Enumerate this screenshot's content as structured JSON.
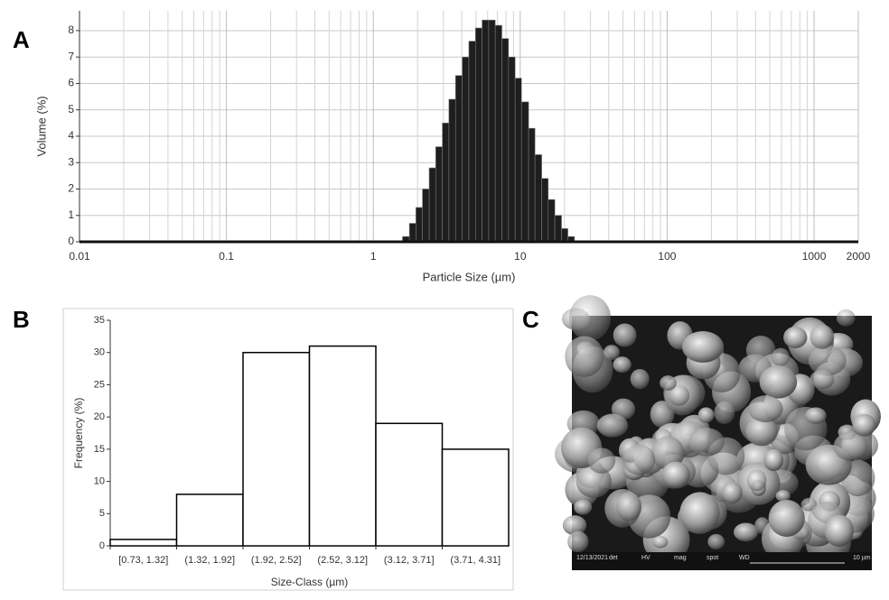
{
  "chart_data": [
    {
      "type": "histogram",
      "panel": "A",
      "xlabel": "Particle Size (µm)",
      "ylabel": "Volume (%)",
      "log_x": true,
      "grid": true,
      "color": "#1e1e1e",
      "bins": [
        1.58,
        1.76,
        1.95,
        2.16,
        2.4,
        2.66,
        2.95,
        3.27,
        3.63,
        4.03,
        4.47,
        4.96,
        5.5,
        6.1,
        6.76,
        7.5,
        8.32,
        9.23,
        10.2,
        11.4,
        12.6,
        14,
        15.5,
        17.2,
        19.1,
        21.1,
        23.4
      ],
      "values": [
        0.2,
        0.7,
        1.3,
        2.0,
        2.8,
        3.6,
        4.5,
        5.4,
        6.3,
        7.0,
        7.6,
        8.1,
        8.4,
        8.4,
        8.2,
        7.7,
        7.0,
        6.2,
        5.3,
        4.3,
        3.3,
        2.4,
        1.6,
        1.0,
        0.5,
        0.2
      ],
      "xlim": [
        0.01,
        2000
      ],
      "xticks": [
        0.01,
        0.1,
        1,
        10,
        100,
        1000,
        2000
      ],
      "ylim": [
        0,
        8.75
      ],
      "yticks": [
        0,
        1,
        2,
        3,
        4,
        5,
        6,
        7,
        8
      ]
    },
    {
      "type": "bar",
      "panel": "B",
      "xlabel": "Size-Class (µm)",
      "ylabel": "Frequency (%)",
      "color": "#ffffff",
      "categories": [
        "[0.73, 1.32]",
        "(1.32, 1.92]",
        "(1.92, 2.52]",
        "(2.52, 3.12]",
        "(3.12, 3.71]",
        "(3.71, 4.31]"
      ],
      "values": [
        1,
        8,
        30,
        31,
        19,
        15
      ],
      "ylim": [
        0,
        35
      ],
      "yticks": [
        0,
        5,
        10,
        15,
        20,
        25,
        30,
        35
      ]
    }
  ],
  "image": {
    "panel": "C",
    "info": [
      "12/13/2021",
      "det",
      "HV",
      "mag",
      "spot",
      "WD",
      "10 µm"
    ]
  }
}
